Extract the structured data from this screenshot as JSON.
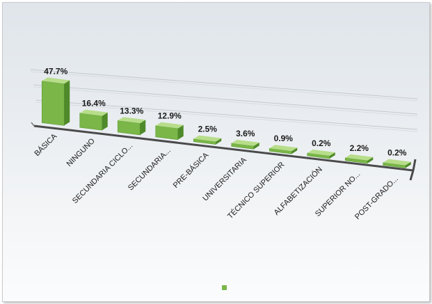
{
  "chart_data": {
    "type": "bar",
    "title": "",
    "xlabel": "",
    "ylabel": "",
    "categories": [
      "BÁSICA",
      "NINGUNO",
      "SECUNDARIA CICLO...",
      "SECUNDARIA...",
      "PRE-BÁSICA",
      "UNIVERSITARIA",
      "TÉCNICO SUPERIOR",
      "ALFABETIZACIÓN",
      "SUPERIOR NO...",
      "POST-GRADO..."
    ],
    "values": [
      47.7,
      16.4,
      13.3,
      12.9,
      2.5,
      3.6,
      0.9,
      0.2,
      2.2,
      0.2
    ],
    "data_labels": [
      "47.7%",
      "16.4%",
      "13.3%",
      "12.9%",
      "2.5%",
      "3.6%",
      "0.9%",
      "0.2%",
      "2.2%",
      "0.2%"
    ],
    "unit": "%",
    "grid": true,
    "legend": "bottom-center",
    "colors": {
      "bar_front": "#7ab648",
      "bar_top": "#b7dd8a",
      "bar_side": "#4f8a2a",
      "grid": "#c4c9ce",
      "floor": "#4a4a4a"
    }
  }
}
